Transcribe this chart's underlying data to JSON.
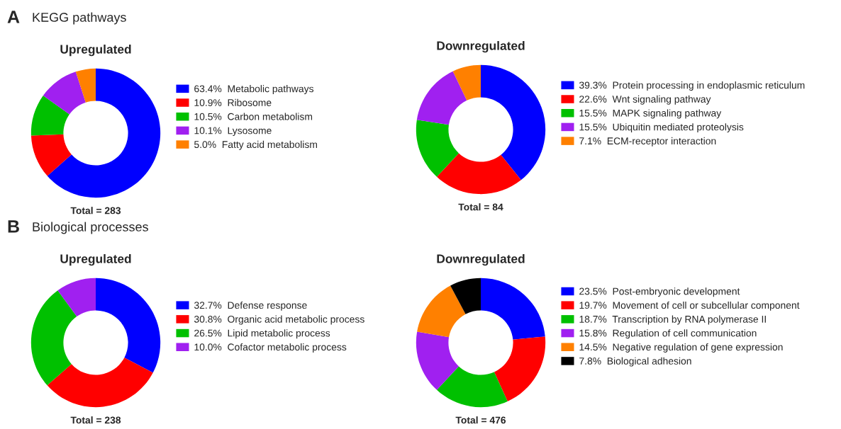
{
  "chart_data": [
    {
      "type": "donut",
      "title": "Upregulated",
      "categories": [
        "Metabolic pathways",
        "Ribosome",
        "Carbon metabolism",
        "Lysosome",
        "Fatty acid metabolism"
      ],
      "values": [
        63.4,
        10.9,
        10.5,
        10.1,
        5.0
      ],
      "value_labels": [
        "63.4%",
        "10.9%",
        "10.5%",
        "10.1%",
        "5.0%"
      ],
      "colors": [
        "#0000ff",
        "#ff0000",
        "#00c000",
        "#a020f0",
        "#ff8000"
      ],
      "legend": "right",
      "annotations": [
        "A",
        "KEGG pathways",
        "Total = 283"
      ]
    },
    {
      "type": "donut",
      "title": "Downregulated",
      "categories": [
        "Protein processing in endoplasmic reticulum",
        "Wnt signaling pathway",
        "MAPK signaling pathway",
        "Ubiquitin mediated proteolysis",
        "ECM-receptor interaction"
      ],
      "values": [
        39.3,
        22.6,
        15.5,
        15.5,
        7.1
      ],
      "value_labels": [
        "39.3%",
        "22.6%",
        "15.5%",
        "15.5%",
        "7.1%"
      ],
      "colors": [
        "#0000ff",
        "#ff0000",
        "#00c000",
        "#a020f0",
        "#ff8000"
      ],
      "legend": "right",
      "annotations": [
        "Total = 84"
      ]
    },
    {
      "type": "donut",
      "title": "Upregulated",
      "categories": [
        "Defense response",
        "Organic acid metabolic process",
        "Lipid metabolic process",
        "Cofactor metabolic process"
      ],
      "values": [
        32.7,
        30.8,
        26.5,
        10.0
      ],
      "value_labels": [
        "32.7%",
        "30.8%",
        "26.5%",
        "10.0%"
      ],
      "colors": [
        "#0000ff",
        "#ff0000",
        "#00c000",
        "#a020f0"
      ],
      "legend": "right",
      "annotations": [
        "B",
        "Biological processes",
        "Total = 238"
      ]
    },
    {
      "type": "donut",
      "title": "Downregulated",
      "categories": [
        "Post-embryonic development",
        "Movement of cell or subcellular component",
        "Transcription by RNA polymerase II",
        "Regulation of cell communication",
        "Negative regulation of gene expression",
        "Biological adhesion"
      ],
      "values": [
        23.5,
        19.7,
        18.7,
        15.8,
        14.5,
        7.8
      ],
      "value_labels": [
        "23.5%",
        "19.7%",
        "18.7%",
        "15.8%",
        "14.5%",
        "7.8%"
      ],
      "colors": [
        "#0000ff",
        "#ff0000",
        "#00c000",
        "#a020f0",
        "#ff8000",
        "#000000"
      ],
      "legend": "right",
      "annotations": [
        "Total = 476"
      ]
    }
  ]
}
